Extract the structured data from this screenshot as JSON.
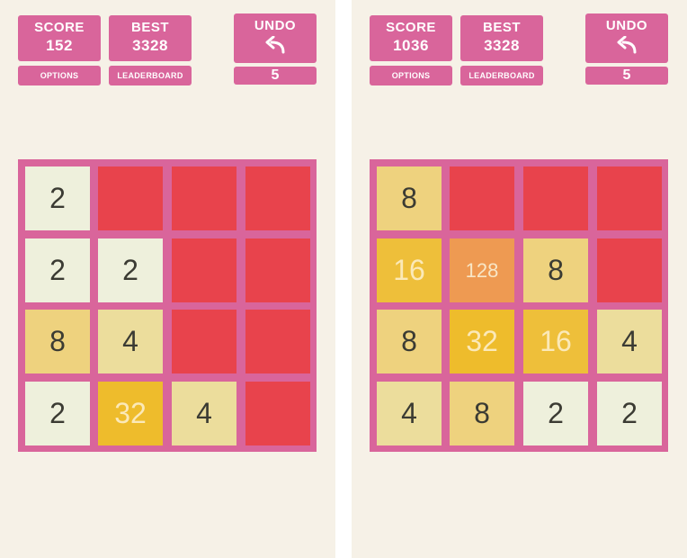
{
  "screens": [
    {
      "score_label": "SCORE",
      "score": "152",
      "best_label": "BEST",
      "best": "3328",
      "options_label": "OPTIONS",
      "leaderboard_label": "LEADERBOARD",
      "undo_label": "UNDO",
      "undo_count": "5",
      "grid": [
        [
          "2",
          "",
          "",
          ""
        ],
        [
          "2",
          "2",
          "",
          ""
        ],
        [
          "8",
          "4",
          "",
          ""
        ],
        [
          "2",
          "32",
          "4",
          ""
        ]
      ]
    },
    {
      "score_label": "SCORE",
      "score": "1036",
      "best_label": "BEST",
      "best": "3328",
      "options_label": "OPTIONS",
      "leaderboard_label": "LEADERBOARD",
      "undo_label": "UNDO",
      "undo_count": "5",
      "grid": [
        [
          "8",
          "",
          "",
          ""
        ],
        [
          "16",
          "128",
          "8",
          ""
        ],
        [
          "8",
          "32",
          "16",
          "4"
        ],
        [
          "4",
          "8",
          "2",
          "2"
        ]
      ]
    }
  ],
  "colors": {
    "accent": "#d9659b",
    "background": "#f6f1e7",
    "empty_cell": "#e8434c",
    "tile_2": "#eef0dc",
    "tile_4": "#ecdd9c",
    "tile_8": "#eed27e",
    "tile_16": "#eebf3a",
    "tile_32": "#eebc2c",
    "tile_128": "#ee9a52"
  }
}
